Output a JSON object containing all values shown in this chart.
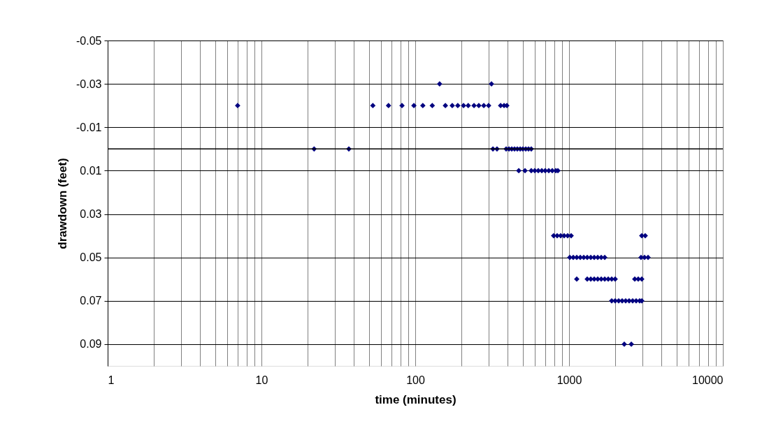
{
  "chart_data": {
    "type": "scatter",
    "xlabel": "time (minutes)",
    "ylabel": "drawdown (feet)",
    "log": "x",
    "grid": true,
    "marker": "diamond",
    "xlim": [
      1,
      10000
    ],
    "ylim": [
      0.1,
      -0.05
    ],
    "xticks": [
      1,
      {
        "value": 2,
        "label": null
      },
      {
        "value": 3,
        "label": null
      },
      {
        "value": 4,
        "label": null
      },
      {
        "value": 5,
        "label": null
      },
      {
        "value": 6,
        "label": null
      },
      {
        "value": 7,
        "label": null
      },
      {
        "value": 8,
        "label": null
      },
      {
        "value": 9,
        "label": null
      },
      10,
      {
        "value": 20,
        "label": null
      },
      {
        "value": 30,
        "label": null
      },
      {
        "value": 40,
        "label": null
      },
      {
        "value": 50,
        "label": null
      },
      {
        "value": 60,
        "label": null
      },
      {
        "value": 70,
        "label": null
      },
      {
        "value": 80,
        "label": null
      },
      {
        "value": 90,
        "label": null
      },
      100,
      {
        "value": 200,
        "label": null
      },
      {
        "value": 300,
        "label": null
      },
      {
        "value": 400,
        "label": null
      },
      {
        "value": 500,
        "label": null
      },
      {
        "value": 600,
        "label": null
      },
      {
        "value": 700,
        "label": null
      },
      {
        "value": 800,
        "label": null
      },
      {
        "value": 900,
        "label": null
      },
      1000,
      {
        "value": 2000,
        "label": null
      },
      {
        "value": 3000,
        "label": null
      },
      {
        "value": 4000,
        "label": null
      },
      {
        "value": 5000,
        "label": null
      },
      {
        "value": 6000,
        "label": null
      },
      {
        "value": 7000,
        "label": null
      },
      {
        "value": 8000,
        "label": null
      },
      {
        "value": 9000,
        "label": null
      },
      10000
    ],
    "yticks": [
      -0.05,
      -0.03,
      -0.01,
      0.01,
      0.03,
      0.05,
      0.07,
      0.09
    ],
    "ref_lines": [
      {
        "axis": "y",
        "value": 0,
        "color": "#000000"
      }
    ],
    "series": [
      {
        "color": "#000080",
        "x": [
          7,
          53,
          67,
          82,
          98,
          112,
          129,
          157,
          174,
          189,
          206,
          221,
          241,
          259,
          279,
          300,
          359,
          378,
          394,
          144,
          313,
          22,
          37,
          320,
          340,
          390,
          407,
          424,
          442,
          461,
          481,
          501,
          523,
          545,
          568,
          471,
          517,
          568,
          599,
          631,
          665,
          700,
          738,
          778,
          820,
          846,
          794,
          837,
          882,
          929,
          979,
          1032,
          2970,
          3128,
          1011,
          1065,
          1122,
          1183,
          1246,
          1313,
          1384,
          1458,
          1536,
          1619,
          1706,
          2938,
          3097,
          3264,
          1122,
          1313,
          1384,
          1458,
          1536,
          1619,
          1706,
          1798,
          1894,
          1995,
          2675,
          2818,
          2970,
          1894,
          1995,
          2102,
          2215,
          2334,
          2459,
          2592,
          2731,
          2877,
          2970,
          2286,
          2540
        ],
        "values": [
          -0.02,
          -0.02,
          -0.02,
          -0.02,
          -0.02,
          -0.02,
          -0.02,
          -0.02,
          -0.02,
          -0.02,
          -0.02,
          -0.02,
          -0.02,
          -0.02,
          -0.02,
          -0.02,
          -0.02,
          -0.02,
          -0.02,
          -0.03,
          -0.03,
          0,
          0,
          0,
          0,
          0,
          0,
          0,
          0,
          0,
          0,
          0,
          0,
          0,
          0,
          0.01,
          0.01,
          0.01,
          0.01,
          0.01,
          0.01,
          0.01,
          0.01,
          0.01,
          0.01,
          0.01,
          0.04,
          0.04,
          0.04,
          0.04,
          0.04,
          0.04,
          0.04,
          0.04,
          0.05,
          0.05,
          0.05,
          0.05,
          0.05,
          0.05,
          0.05,
          0.05,
          0.05,
          0.05,
          0.05,
          0.05,
          0.05,
          0.05,
          0.06,
          0.06,
          0.06,
          0.06,
          0.06,
          0.06,
          0.06,
          0.06,
          0.06,
          0.06,
          0.06,
          0.06,
          0.06,
          0.07,
          0.07,
          0.07,
          0.07,
          0.07,
          0.07,
          0.07,
          0.07,
          0.07,
          0.07,
          0.09,
          0.09
        ]
      }
    ]
  }
}
